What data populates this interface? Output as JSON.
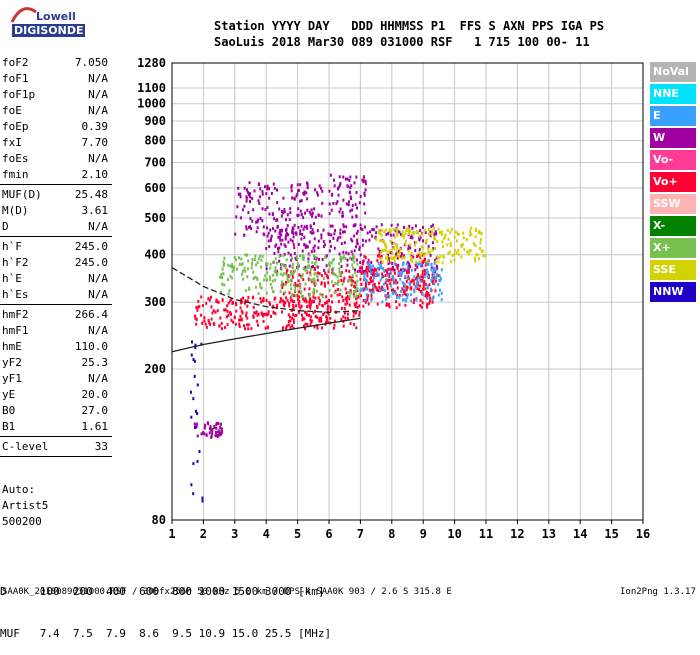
{
  "logo": {
    "line1": "Lowell",
    "line2": "DIGISONDE"
  },
  "header": {
    "columns": "Station YYYY DAY   DDD HHMMSS P1  FFS S AXN PPS IGA PS",
    "values": "SaoLuis 2018 Mar30 089 031000 RSF   1 715 100 00- 11"
  },
  "params": [
    {
      "name": "foF2",
      "value": "7.050"
    },
    {
      "name": "foF1",
      "value": "N/A"
    },
    {
      "name": "foF1p",
      "value": "N/A"
    },
    {
      "name": "foE",
      "value": "N/A"
    },
    {
      "name": "foEp",
      "value": "0.39"
    },
    {
      "name": "fxI",
      "value": "7.70"
    },
    {
      "name": "foEs",
      "value": "N/A"
    },
    {
      "name": "fmin",
      "value": "2.10",
      "sep": true
    },
    {
      "name": "MUF(D)",
      "value": "25.48"
    },
    {
      "name": "M(D)",
      "value": "3.61"
    },
    {
      "name": "D",
      "value": "N/A",
      "sep": true
    },
    {
      "name": "h`F",
      "value": "245.0"
    },
    {
      "name": "h`F2",
      "value": "245.0"
    },
    {
      "name": "h`E",
      "value": "N/A"
    },
    {
      "name": "h`Es",
      "value": "N/A",
      "sep": true
    },
    {
      "name": "hmF2",
      "value": "266.4"
    },
    {
      "name": "hmF1",
      "value": "N/A"
    },
    {
      "name": "hmE",
      "value": "110.0"
    },
    {
      "name": "yF2",
      "value": "25.3"
    },
    {
      "name": "yF1",
      "value": "N/A"
    },
    {
      "name": "yE",
      "value": "20.0"
    },
    {
      "name": "B0",
      "value": "27.0"
    },
    {
      "name": "B1",
      "value": "1.61",
      "sep": true
    },
    {
      "name": "C-level",
      "value": "33",
      "sep": true
    }
  ],
  "auto": {
    "line1": "Auto:",
    "line2": "Artist5",
    "line3": "500200"
  },
  "legend": [
    {
      "label": "NoVal",
      "color": "#b4b4b4"
    },
    {
      "label": "NNE",
      "color": "#00e4ff"
    },
    {
      "label": "E",
      "color": "#3aa0ff"
    },
    {
      "label": "W",
      "color": "#a000a0"
    },
    {
      "label": "Vo-",
      "color": "#ff3c96"
    },
    {
      "label": "Vo+",
      "color": "#ff0032"
    },
    {
      "label": "SSW",
      "color": "#ffb4b4"
    },
    {
      "label": "X-",
      "color": "#008200"
    },
    {
      "label": "X+",
      "color": "#78c050"
    },
    {
      "label": "SSE",
      "color": "#d2d200"
    },
    {
      "label": "NNW",
      "color": "#1e00c8"
    }
  ],
  "dmuf": {
    "d_line": "D     100  200  400  600  800 1000 1500 3000 [km]",
    "muf_line": "MUF   7.4  7.5  7.9  8.6  9.5 10.9 15.0 25.5 [MHz]"
  },
  "footer": {
    "left": "SAA0K_2018089031000.RSF / 300fx256h 50 kHz 5.0 km / DPS-4 SAA0K 903 / 2.6 S 315.8 E",
    "right": "Ion2Png 1.3.17"
  },
  "chart_data": {
    "type": "scatter",
    "title": "",
    "xlabel": "",
    "ylabel": "",
    "xlim": [
      1,
      16
    ],
    "ylim": [
      80,
      1280
    ],
    "x_ticks": [
      1,
      2,
      3,
      4,
      5,
      6,
      7,
      8,
      9,
      10,
      11,
      12,
      13,
      14,
      15,
      16
    ],
    "y_ticks": [
      80,
      200,
      300,
      400,
      500,
      600,
      700,
      800,
      900,
      1000,
      1100,
      1280
    ],
    "grid": true,
    "legend_placement": "right-outside",
    "y_scale": "log",
    "series": [
      {
        "name": "Vo+",
        "color": "#ff0032",
        "clusters": [
          {
            "x": [
              1.7,
              7.0
            ],
            "y": [
              255,
              310
            ]
          },
          {
            "x": [
              4.5,
              9.5
            ],
            "y": [
              290,
              370
            ]
          },
          {
            "x": [
              7.0,
              9.2
            ],
            "y": [
              320,
              400
            ]
          }
        ]
      },
      {
        "name": "W",
        "color": "#a000a0",
        "clusters": [
          {
            "x": [
              3.0,
              5.8
            ],
            "y": [
              450,
              620
            ]
          },
          {
            "x": [
              6.0,
              7.2
            ],
            "y": [
              500,
              650
            ]
          },
          {
            "x": [
              4.0,
              9.5
            ],
            "y": [
              360,
              480
            ]
          },
          {
            "x": [
              1.7,
              2.6
            ],
            "y": [
              132,
              145
            ]
          }
        ]
      },
      {
        "name": "X+",
        "color": "#78c050",
        "clusters": [
          {
            "x": [
              2.5,
              7.0
            ],
            "y": [
              310,
              400
            ]
          }
        ]
      },
      {
        "name": "SSE",
        "color": "#d2d200",
        "clusters": [
          {
            "x": [
              7.5,
              11.0
            ],
            "y": [
              380,
              470
            ]
          }
        ]
      },
      {
        "name": "E",
        "color": "#3aa0ff",
        "clusters": [
          {
            "x": [
              7.0,
              9.6
            ],
            "y": [
              300,
              380
            ]
          }
        ]
      },
      {
        "name": "NNW",
        "color": "#1e00c8",
        "clusters": [
          {
            "x": [
              1.6,
              2.0
            ],
            "y": [
              84,
              240
            ]
          }
        ]
      }
    ],
    "model_profile_curves": [
      {
        "x": [
          1.0,
          2.0,
          3.0,
          4.0,
          5.0,
          6.0,
          7.0
        ],
        "y": [
          222,
          232,
          240,
          248,
          256,
          264,
          272
        ]
      },
      {
        "x": [
          1.0,
          2.0,
          3.0,
          4.0,
          5.0,
          6.0,
          7.0
        ],
        "y": [
          370,
          330,
          305,
          292,
          285,
          282,
          285
        ]
      }
    ]
  }
}
